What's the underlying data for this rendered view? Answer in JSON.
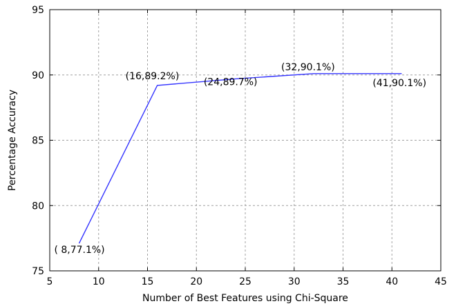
{
  "chart_data": {
    "type": "line",
    "title": "",
    "xlabel": "Number of Best Features using Chi-Square",
    "ylabel": "Percentage Accuracy",
    "xlim": [
      5,
      45
    ],
    "ylim": [
      75,
      95
    ],
    "xticks": [
      5,
      10,
      15,
      20,
      25,
      30,
      35,
      40,
      45
    ],
    "yticks": [
      75,
      80,
      85,
      90,
      95
    ],
    "grid": true,
    "series": [
      {
        "color": "#3333ff",
        "x": [
          8,
          16,
          24,
          32,
          41
        ],
        "y": [
          77.1,
          89.2,
          89.7,
          90.1,
          90.1
        ]
      }
    ],
    "annotations": [
      {
        "text": "( 8,77.1%)",
        "x": 8,
        "y": 77.1
      },
      {
        "text": "(16,89.2%)",
        "x": 16,
        "y": 89.2
      },
      {
        "text": "(24,89.7%)",
        "x": 24,
        "y": 89.7
      },
      {
        "text": "(32,90.1%)",
        "x": 32,
        "y": 90.1
      },
      {
        "text": "(41,90.1%)",
        "x": 41,
        "y": 90.1
      }
    ]
  }
}
